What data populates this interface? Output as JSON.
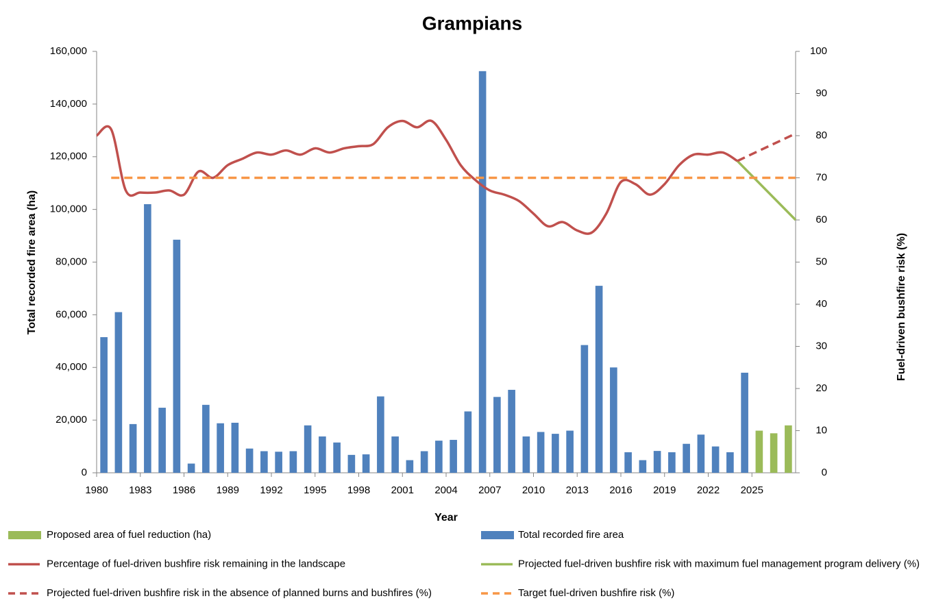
{
  "chart_data": {
    "type": "combo",
    "title": "Grampians",
    "x_label": "Year",
    "y_label": "Total recorded fire area (ha)",
    "y2_label": "Fuel-driven bushfire risk (%)",
    "xlim": [
      1980,
      2028
    ],
    "xticks": [
      1980,
      1983,
      1986,
      1989,
      1992,
      1995,
      1998,
      2001,
      2004,
      2007,
      2010,
      2013,
      2016,
      2019,
      2022,
      2025
    ],
    "ylim": [
      0,
      160000
    ],
    "yticks": [
      0,
      {
        "value": 20000,
        "label": "20,000"
      },
      {
        "value": 40000,
        "label": "40,000"
      },
      {
        "value": 60000,
        "label": "60,000"
      },
      {
        "value": 80000,
        "label": "80,000"
      },
      {
        "value": 100000,
        "label": "100,000"
      },
      {
        "value": 120000,
        "label": "120,000"
      },
      {
        "value": 140000,
        "label": "140,000"
      },
      {
        "value": 160000,
        "label": "160,000"
      }
    ],
    "y2lim": [
      0,
      100
    ],
    "y2ticks": [
      0,
      10,
      20,
      30,
      40,
      50,
      60,
      70,
      80,
      90,
      100
    ],
    "grid": false,
    "series": [
      {
        "name": "Proposed area of fuel reduction (ha)",
        "type": "bar",
        "color": "#9bbb59",
        "x": [
          2025,
          2026,
          2027
        ],
        "values": [
          16000,
          15000,
          18000
        ]
      },
      {
        "name": "Total recorded fire area",
        "type": "bar",
        "color": "#4f81bd",
        "x": [
          1980,
          1981,
          1982,
          1983,
          1984,
          1985,
          1986,
          1987,
          1988,
          1989,
          1990,
          1991,
          1992,
          1993,
          1994,
          1995,
          1996,
          1997,
          1998,
          1999,
          2000,
          2001,
          2002,
          2003,
          2004,
          2005,
          2006,
          2007,
          2008,
          2009,
          2010,
          2011,
          2012,
          2013,
          2014,
          2015,
          2016,
          2017,
          2018,
          2019,
          2020,
          2021,
          2022,
          2023,
          2024
        ],
        "values": [
          51500,
          61000,
          18500,
          102000,
          24700,
          88500,
          3500,
          25800,
          18800,
          19000,
          9200,
          8200,
          8000,
          8200,
          18000,
          13800,
          11500,
          6800,
          7000,
          29000,
          13800,
          4800,
          8200,
          12200,
          12500,
          23300,
          152500,
          28800,
          31500,
          13800,
          15500,
          14800,
          16000,
          48500,
          71000,
          40000,
          7800,
          4800,
          8300,
          7800,
          11000,
          14500,
          10000,
          7800,
          38000
        ]
      },
      {
        "name": "Percentage of fuel-driven bushfire risk remaining in the landscape",
        "type": "line",
        "axis": "y2",
        "color": "#c0504d",
        "dash": false,
        "x": [
          1980,
          1981,
          1982,
          1983,
          1984,
          1985,
          1986,
          1987,
          1988,
          1989,
          1990,
          1991,
          1992,
          1993,
          1994,
          1995,
          1996,
          1997,
          1998,
          1999,
          2000,
          2001,
          2002,
          2003,
          2004,
          2005,
          2006,
          2007,
          2008,
          2009,
          2010,
          2011,
          2012,
          2013,
          2014,
          2015,
          2016,
          2017,
          2018,
          2019,
          2020,
          2021,
          2022,
          2023,
          2024
        ],
        "values": [
          80,
          81.5,
          67,
          66.5,
          66.5,
          67,
          66,
          71.5,
          70,
          73,
          74.5,
          76,
          75.5,
          76.5,
          75.5,
          77,
          76,
          77,
          77.5,
          78,
          82,
          83.5,
          82,
          83.5,
          79,
          73,
          69.5,
          67,
          66,
          64.5,
          61.5,
          58.5,
          59.5,
          57.5,
          57,
          61.5,
          69,
          68.5,
          66,
          68.5,
          73,
          75.5,
          75.5,
          76,
          74
        ]
      },
      {
        "name": "Projected fuel-driven bushfire risk with maximum fuel management program delivery  (%)",
        "type": "line",
        "axis": "y2",
        "color": "#9bbb59",
        "dash": false,
        "x": [
          2024,
          2028
        ],
        "values": [
          74,
          60
        ]
      },
      {
        "name": "Projected fuel-driven bushfire risk in the absence of planned burns and bushfires (%)",
        "type": "line",
        "axis": "y2",
        "color": "#c0504d",
        "dash": true,
        "x": [
          2024,
          2028
        ],
        "values": [
          74,
          80.5
        ]
      },
      {
        "name": "Target fuel-driven bushfire risk (%)",
        "type": "line",
        "axis": "y2",
        "color": "#f79646",
        "dash": true,
        "x": [
          1981,
          2028
        ],
        "values": [
          70,
          70
        ]
      }
    ]
  }
}
